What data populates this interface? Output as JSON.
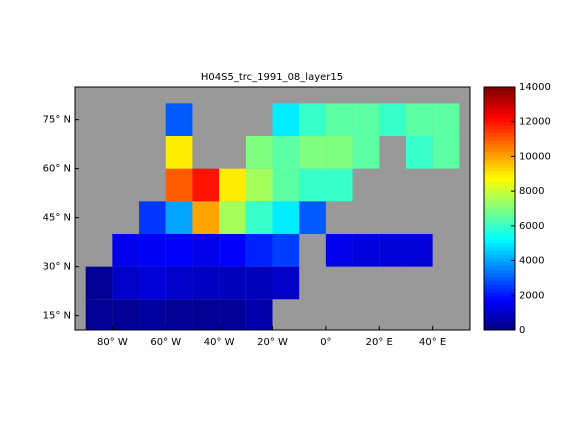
{
  "chart_data": {
    "type": "heatmap",
    "title": "H04S5_trc_1991_08_layer15",
    "colormap": "jet",
    "x": [
      -90,
      -80,
      -70,
      -60,
      -50,
      -40,
      -30,
      -20,
      -10,
      0,
      10,
      20,
      30,
      40,
      50
    ],
    "y": [
      10,
      20,
      30,
      40,
      50,
      60,
      70,
      80
    ],
    "values": [
      [
        300,
        300,
        400,
        300,
        300,
        300,
        600,
        null,
        null,
        null,
        null,
        null,
        null,
        null
      ],
      [
        300,
        1000,
        1200,
        1000,
        900,
        800,
        800,
        1000,
        null,
        null,
        null,
        null,
        null,
        null
      ],
      [
        null,
        1500,
        1600,
        1700,
        1500,
        1700,
        2200,
        2600,
        null,
        1500,
        1300,
        1200,
        1200,
        null
      ],
      [
        null,
        null,
        2500,
        4000,
        10000,
        7500,
        6000,
        5000,
        3000,
        null,
        null,
        null,
        null,
        null
      ],
      [
        null,
        null,
        null,
        11000,
        12000,
        9000,
        7500,
        6500,
        6000,
        6000,
        null,
        null,
        null,
        null
      ],
      [
        null,
        null,
        null,
        9000,
        null,
        null,
        7000,
        6500,
        7000,
        7000,
        6500,
        null,
        6000,
        6500
      ],
      [
        null,
        null,
        null,
        3000,
        null,
        null,
        null,
        5000,
        6000,
        6500,
        6500,
        6000,
        6500,
        6500
      ]
    ],
    "xlim": [
      -94,
      54
    ],
    "ylim": [
      10.6,
      85
    ],
    "xticks": [
      {
        "value": -80,
        "label": "80° W"
      },
      {
        "value": -60,
        "label": "60° W"
      },
      {
        "value": -40,
        "label": "40° W"
      },
      {
        "value": -20,
        "label": "20° W"
      },
      {
        "value": 0,
        "label": "0°"
      },
      {
        "value": 20,
        "label": "20° E"
      },
      {
        "value": 40,
        "label": "40° E"
      }
    ],
    "yticks": [
      {
        "value": 15,
        "label": "15° N"
      },
      {
        "value": 30,
        "label": "30° N"
      },
      {
        "value": 45,
        "label": "45° N"
      },
      {
        "value": 60,
        "label": "60° N"
      },
      {
        "value": 75,
        "label": "75° N"
      }
    ],
    "clim": [
      0,
      14000
    ],
    "cticks": [
      0,
      2000,
      4000,
      6000,
      8000,
      10000,
      12000,
      14000
    ],
    "land_color": "#999999"
  }
}
